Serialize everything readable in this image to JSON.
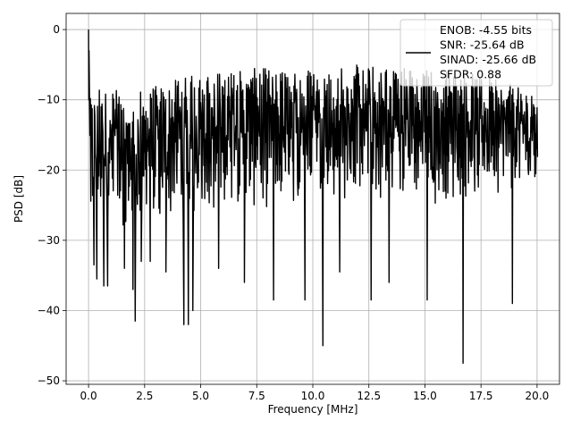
{
  "chart_data": {
    "type": "line",
    "title": "",
    "xlabel": "Frequency [MHz]",
    "ylabel": "PSD [dB]",
    "xlim": [
      -1.0,
      21.0
    ],
    "ylim": [
      -50.5,
      2.3
    ],
    "xticks": [
      0.0,
      2.5,
      5.0,
      7.5,
      10.0,
      12.5,
      15.0,
      17.5,
      20.0
    ],
    "xtick_labels": [
      "0.0",
      "2.5",
      "5.0",
      "7.5",
      "10.0",
      "12.5",
      "15.0",
      "17.5",
      "20.0"
    ],
    "yticks": [
      0,
      -10,
      -20,
      -30,
      -40,
      -50
    ],
    "ytick_labels": [
      "0",
      "−10",
      "−20",
      "−30",
      "−40",
      "−50"
    ],
    "grid": true,
    "legend_position": "top-right",
    "legend_lines": [
      "ENOB: -4.55 bits",
      "SNR: -25.64 dB",
      "SINAD: -25.66 dB",
      "SFDR: 0.88"
    ],
    "line_color": "#000000",
    "series": [
      {
        "x_start": 0.0,
        "x_end": 20.0,
        "x_step": 0.04,
        "sample_count": 501,
        "peak_value": 0.0,
        "upper_envelope": [
          [
            0,
            -8
          ],
          [
            2,
            -9
          ],
          [
            5,
            -6
          ],
          [
            10,
            -5
          ],
          [
            14,
            -5
          ],
          [
            17,
            -6
          ],
          [
            20,
            -9
          ]
        ],
        "typical_low": [
          [
            0,
            -27
          ],
          [
            5,
            -24
          ],
          [
            10,
            -22
          ],
          [
            15,
            -23
          ],
          [
            20,
            -20
          ]
        ],
        "notable_minima": [
          {
            "x": 0.24,
            "y": -33.5
          },
          {
            "x": 0.37,
            "y": -35.5
          },
          {
            "x": 0.68,
            "y": -36.5
          },
          {
            "x": 0.85,
            "y": -36.5
          },
          {
            "x": 1.6,
            "y": -34.0
          },
          {
            "x": 1.98,
            "y": -37.0
          },
          {
            "x": 2.08,
            "y": -41.5
          },
          {
            "x": 2.35,
            "y": -33.0
          },
          {
            "x": 2.75,
            "y": -33.0
          },
          {
            "x": 3.45,
            "y": -34.5
          },
          {
            "x": 4.25,
            "y": -42.0
          },
          {
            "x": 4.45,
            "y": -42.0
          },
          {
            "x": 4.65,
            "y": -40.0
          },
          {
            "x": 5.8,
            "y": -34.0
          },
          {
            "x": 6.95,
            "y": -36.0
          },
          {
            "x": 8.25,
            "y": -38.5
          },
          {
            "x": 9.65,
            "y": -38.5
          },
          {
            "x": 10.45,
            "y": -45.0
          },
          {
            "x": 11.2,
            "y": -34.5
          },
          {
            "x": 12.6,
            "y": -38.5
          },
          {
            "x": 13.4,
            "y": -36.0
          },
          {
            "x": 15.1,
            "y": -38.5
          },
          {
            "x": 16.7,
            "y": -47.5
          },
          {
            "x": 18.9,
            "y": -39.0
          }
        ]
      }
    ]
  }
}
